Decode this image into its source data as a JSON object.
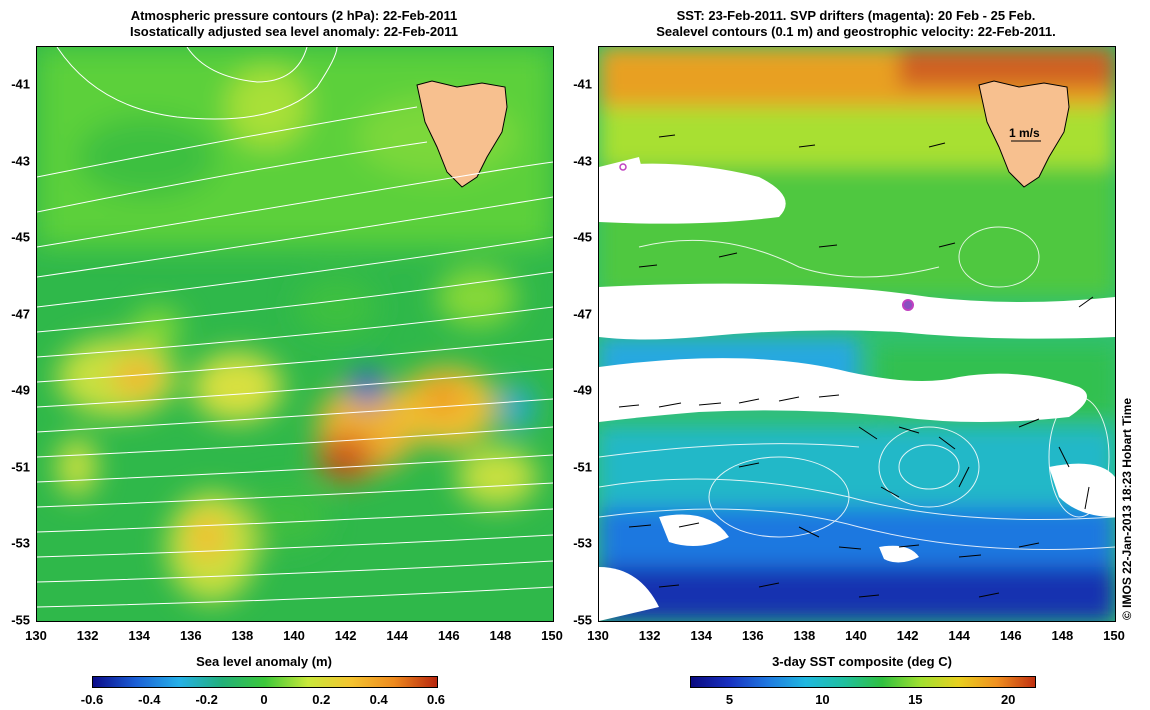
{
  "left_panel": {
    "title_line1": "Atmospheric pressure contours (2 hPa): 22-Feb-2011",
    "title_line2": "Isostatically adjusted sea level anomaly: 22-Feb-2011",
    "x_ticks": [
      "130",
      "132",
      "134",
      "136",
      "138",
      "140",
      "142",
      "144",
      "146",
      "148",
      "150"
    ],
    "y_ticks": [
      "-41",
      "-43",
      "-45",
      "-47",
      "-49",
      "-51",
      "-53",
      "-55"
    ],
    "colorbar_label": "Sea level anomaly (m)",
    "colorbar_ticks": [
      "-0.6",
      "-0.4",
      "-0.2",
      "0",
      "0.2",
      "0.4",
      "0.6"
    ],
    "colorbar_colors": [
      "#0b0b8a",
      "#1b5fd6",
      "#25b0e8",
      "#22b07a",
      "#3cc83a",
      "#c9e83a",
      "#f4c430",
      "#ee8a1e",
      "#b8260e"
    ]
  },
  "right_panel": {
    "title_line1": "SST: 23-Feb-2011. SVP drifters (magenta): 20 Feb - 25 Feb.",
    "title_line2": "Sealevel contours (0.1 m) and geostrophic velocity: 22-Feb-2011.",
    "x_ticks": [
      "130",
      "132",
      "134",
      "136",
      "138",
      "140",
      "142",
      "144",
      "146",
      "148",
      "150"
    ],
    "y_ticks": [
      "-41",
      "-43",
      "-45",
      "-47",
      "-49",
      "-51",
      "-53",
      "-55"
    ],
    "velocity_scale_label": "1 m/s",
    "colorbar_label": "3-day SST composite (deg C)",
    "colorbar_ticks": [
      "5",
      "10",
      "15",
      "20"
    ],
    "colorbar_colors": [
      "#0a0a80",
      "#1830c0",
      "#1f78e0",
      "#20b8e0",
      "#20c0a0",
      "#30c040",
      "#a0e030",
      "#e8d020",
      "#f09020",
      "#c03010"
    ]
  },
  "credit": "© IMOS 22-Jan-2013 18:23 Hobart Time",
  "colors": {
    "land": "#f7c08f",
    "contour": "#ffffff",
    "drifter": "#c040c0"
  }
}
